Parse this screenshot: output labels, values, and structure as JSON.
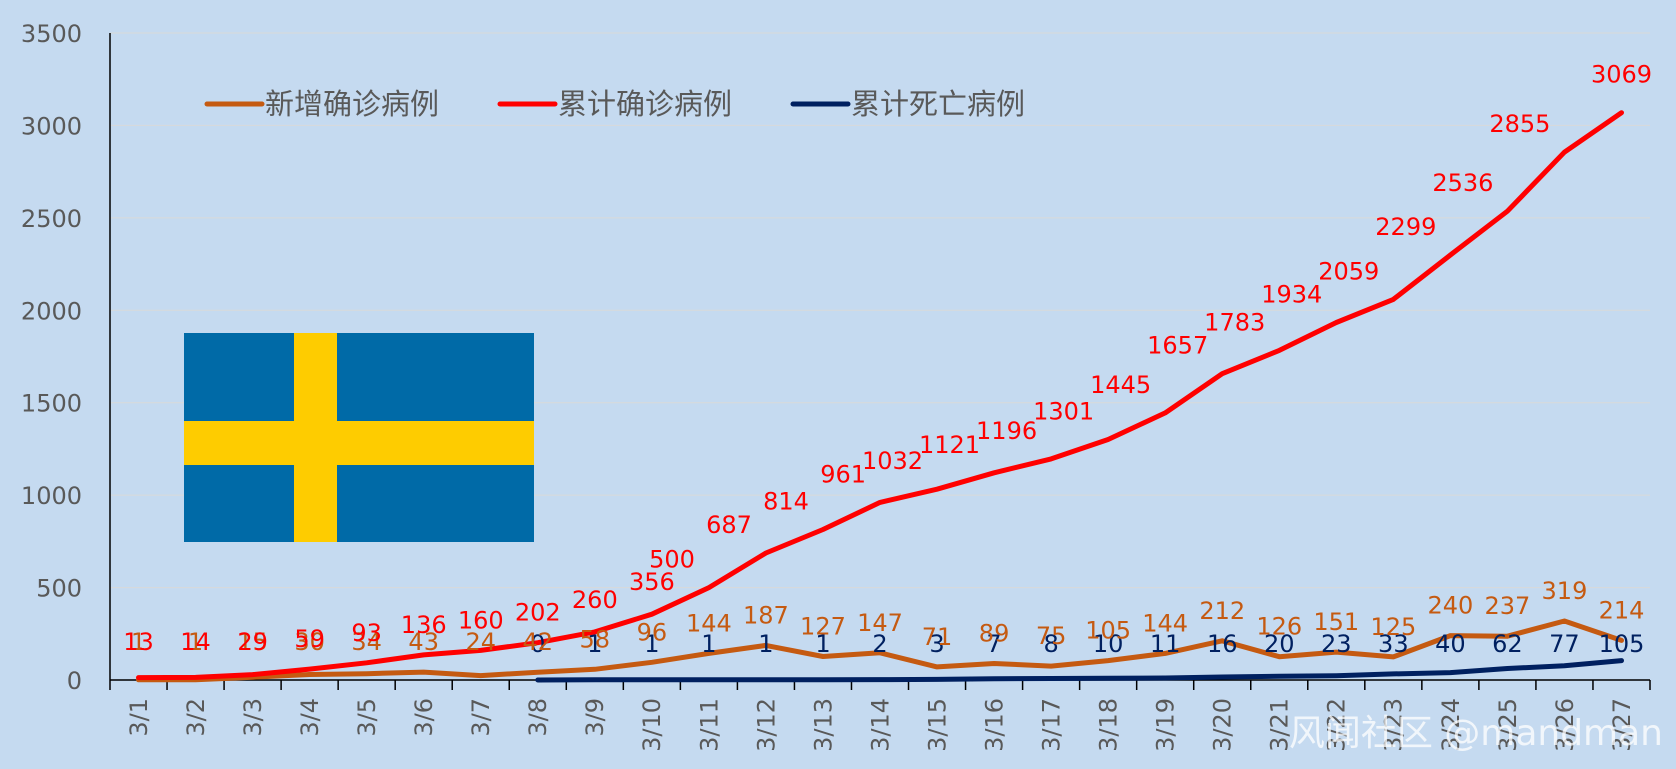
{
  "chart_data": {
    "type": "line",
    "categories": [
      "3/1",
      "3/2",
      "3/3",
      "3/4",
      "3/5",
      "3/6",
      "3/7",
      "3/8",
      "3/9",
      "3/10",
      "3/11",
      "3/12",
      "3/13",
      "3/14",
      "3/15",
      "3/16",
      "3/17",
      "3/18",
      "3/19",
      "3/20",
      "3/21",
      "3/22",
      "3/23",
      "3/24",
      "3/25",
      "3/26",
      "3/27"
    ],
    "ylim": [
      0,
      3500
    ],
    "yticks": [
      0,
      500,
      1000,
      1500,
      2000,
      2500,
      3000,
      3500
    ],
    "grid": true,
    "legend_position": "top-left",
    "series": [
      {
        "name": "新增确诊病例",
        "color": "#c55a11",
        "values": [
          1,
          1,
          15,
          30,
          34,
          43,
          24,
          42,
          58,
          96,
          144,
          187,
          127,
          147,
          71,
          89,
          75,
          105,
          144,
          212,
          126,
          151,
          125,
          240,
          237,
          319,
          214
        ]
      },
      {
        "name": "累计确诊病例",
        "color": "#ff0000",
        "values": [
          13,
          14,
          29,
          59,
          93,
          136,
          160,
          202,
          260,
          356,
          500,
          687,
          814,
          961,
          1032,
          1121,
          1196,
          1301,
          1445,
          1657,
          1783,
          1934,
          2059,
          2299,
          2536,
          2855,
          3069
        ]
      },
      {
        "name": "累计死亡病例",
        "color": "#002060",
        "values": [
          null,
          null,
          null,
          null,
          null,
          null,
          null,
          0,
          1,
          1,
          1,
          1,
          1,
          2,
          3,
          7,
          8,
          10,
          11,
          16,
          20,
          23,
          33,
          40,
          62,
          77,
          105
        ]
      }
    ]
  },
  "flag": {
    "blue": "#006aa7",
    "yellow": "#fecc00"
  },
  "watermark": "风闻社区 @mandman"
}
